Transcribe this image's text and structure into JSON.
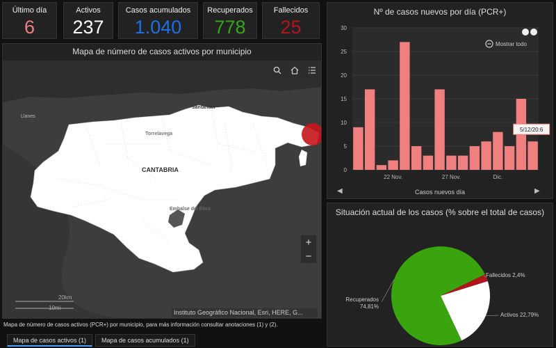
{
  "kpis": {
    "ultimo_dia": {
      "label": "Último día",
      "value": "6",
      "color": "#f08080"
    },
    "activos": {
      "label": "Activos",
      "value": "237",
      "color": "#ffffff"
    },
    "acumulados": {
      "label": "Casos acumulados",
      "value": "1.040",
      "color": "#1e6fe0"
    },
    "recuperados": {
      "label": "Recuperados",
      "value": "778",
      "color": "#32a818"
    },
    "fallecidos": {
      "label": "Fallecidos",
      "value": "25",
      "color": "#b0141c"
    }
  },
  "map": {
    "title": "Mapa de número de casos activos por municipio",
    "place_labels": {
      "llanes": "Llanes",
      "santander": "Santander",
      "torrelavega": "Torrelavega",
      "cantabria": "CANTABRIA",
      "embalse": "Embalse del Ebro"
    },
    "scale_km": "20km",
    "scale_mi": "10mi",
    "attribution": "Instituto Geográfico Nacional, Esri, HERE, G...",
    "zoom_in": "+",
    "zoom_out": "−",
    "footnote": "Mapa de número de casos activos (PCR+) por municipio, para más información consultar anotaciones (1) y (2).",
    "tabs": [
      "Mapa de casos activos (1)",
      "Mapa de casos acumulados (1)"
    ],
    "accent": "#4aa3ff"
  },
  "bar_chart": {
    "title": "Nº de casos nuevos por día (PCR+)",
    "show_all_label": "Mostrar todo",
    "caption": "Casos nuevos día",
    "tooltip": "5/12/20:6",
    "nav_prev": "◀",
    "nav_next": "▶",
    "bar_color": "#f08080"
  },
  "pie_chart": {
    "title": "Situación actual de los casos (% sobre el total de casos)",
    "labels": {
      "recuperados": "Recuperados\n74,81%",
      "activos": "Activos 22,79%",
      "fallecidos": "Fallecidos 2,4%"
    }
  },
  "chart_data": [
    {
      "type": "bar",
      "title": "Nº de casos nuevos por día (PCR+)",
      "xlabel": "Casos nuevos día",
      "ylabel": "",
      "ylim": [
        0,
        30
      ],
      "yticks": [
        0,
        5,
        10,
        15,
        20,
        25,
        30
      ],
      "x_tick_labels": [
        {
          "index": 3,
          "label": "22 Nov."
        },
        {
          "index": 8,
          "label": "27 Nov."
        },
        {
          "index": 12,
          "label": "Dic."
        }
      ],
      "values": [
        9,
        17,
        1,
        2,
        27,
        5,
        3,
        17,
        3,
        3,
        5,
        6,
        8,
        5,
        15,
        6
      ],
      "grid": true
    },
    {
      "type": "pie",
      "title": "Situación actual de los casos (% sobre el total de casos)",
      "slices": [
        {
          "name": "Recuperados",
          "value": 74.81,
          "color": "#3aa40e"
        },
        {
          "name": "Activos",
          "value": 22.79,
          "color": "#ffffff"
        },
        {
          "name": "Fallecidos",
          "value": 2.4,
          "color": "#b0141c"
        }
      ]
    }
  ]
}
